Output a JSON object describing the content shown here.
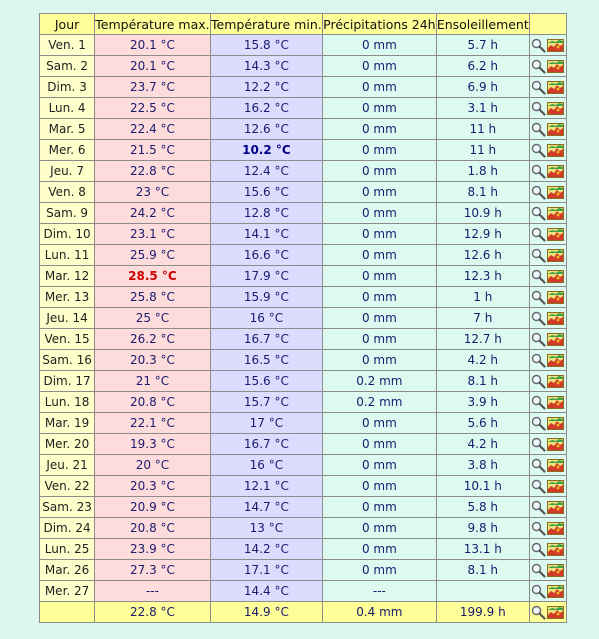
{
  "headers": {
    "jour": "Jour",
    "tmax": "Température max.",
    "tmin": "Température min.",
    "prec": "Précipitations 24h",
    "sun": "Ensoleillement"
  },
  "rows": [
    {
      "jour": "Ven. 1",
      "tmax": "20.1 °C",
      "tmin": "15.8 °C",
      "prec": "0 mm",
      "sun": "5.7 h"
    },
    {
      "jour": "Sam. 2",
      "tmax": "20.1 °C",
      "tmin": "14.3 °C",
      "prec": "0 mm",
      "sun": "6.2 h"
    },
    {
      "jour": "Dim. 3",
      "tmax": "23.7 °C",
      "tmin": "12.2 °C",
      "prec": "0 mm",
      "sun": "6.9 h"
    },
    {
      "jour": "Lun. 4",
      "tmax": "22.5 °C",
      "tmin": "16.2 °C",
      "prec": "0 mm",
      "sun": "3.1 h"
    },
    {
      "jour": "Mar. 5",
      "tmax": "22.4 °C",
      "tmin": "12.6 °C",
      "prec": "0 mm",
      "sun": "11 h"
    },
    {
      "jour": "Mer. 6",
      "tmax": "21.5 °C",
      "tmin": "10.2 °C",
      "prec": "0 mm",
      "sun": "11 h"
    },
    {
      "jour": "Jeu. 7",
      "tmax": "22.8 °C",
      "tmin": "12.4 °C",
      "prec": "0 mm",
      "sun": "1.8 h"
    },
    {
      "jour": "Ven. 8",
      "tmax": "23 °C",
      "tmin": "15.6 °C",
      "prec": "0 mm",
      "sun": "8.1 h"
    },
    {
      "jour": "Sam. 9",
      "tmax": "24.2 °C",
      "tmin": "12.8 °C",
      "prec": "0 mm",
      "sun": "10.9 h"
    },
    {
      "jour": "Dim. 10",
      "tmax": "23.1 °C",
      "tmin": "14.1 °C",
      "prec": "0 mm",
      "sun": "12.9 h"
    },
    {
      "jour": "Lun. 11",
      "tmax": "25.9 °C",
      "tmin": "16.6 °C",
      "prec": "0 mm",
      "sun": "12.6 h"
    },
    {
      "jour": "Mar. 12",
      "tmax": "28.5 °C",
      "tmin": "17.9 °C",
      "prec": "0 mm",
      "sun": "12.3 h"
    },
    {
      "jour": "Mer. 13",
      "tmax": "25.8 °C",
      "tmin": "15.9 °C",
      "prec": "0 mm",
      "sun": "1 h"
    },
    {
      "jour": "Jeu. 14",
      "tmax": "25 °C",
      "tmin": "16 °C",
      "prec": "0 mm",
      "sun": "7 h"
    },
    {
      "jour": "Ven. 15",
      "tmax": "26.2 °C",
      "tmin": "16.7 °C",
      "prec": "0 mm",
      "sun": "12.7 h"
    },
    {
      "jour": "Sam. 16",
      "tmax": "20.3 °C",
      "tmin": "16.5 °C",
      "prec": "0 mm",
      "sun": "4.2 h"
    },
    {
      "jour": "Dim. 17",
      "tmax": "21 °C",
      "tmin": "15.6 °C",
      "prec": "0.2 mm",
      "sun": "8.1 h"
    },
    {
      "jour": "Lun. 18",
      "tmax": "20.8 °C",
      "tmin": "15.7 °C",
      "prec": "0.2 mm",
      "sun": "3.9 h"
    },
    {
      "jour": "Mar. 19",
      "tmax": "22.1 °C",
      "tmin": "17 °C",
      "prec": "0 mm",
      "sun": "5.6 h"
    },
    {
      "jour": "Mer. 20",
      "tmax": "19.3 °C",
      "tmin": "16.7 °C",
      "prec": "0 mm",
      "sun": "4.2 h"
    },
    {
      "jour": "Jeu. 21",
      "tmax": "20 °C",
      "tmin": "16 °C",
      "prec": "0 mm",
      "sun": "3.8 h"
    },
    {
      "jour": "Ven. 22",
      "tmax": "20.3 °C",
      "tmin": "12.1 °C",
      "prec": "0 mm",
      "sun": "10.1 h"
    },
    {
      "jour": "Sam. 23",
      "tmax": "20.9 °C",
      "tmin": "14.7 °C",
      "prec": "0 mm",
      "sun": "5.8 h"
    },
    {
      "jour": "Dim. 24",
      "tmax": "20.8 °C",
      "tmin": "13 °C",
      "prec": "0 mm",
      "sun": "9.8 h"
    },
    {
      "jour": "Lun. 25",
      "tmax": "23.9 °C",
      "tmin": "14.2 °C",
      "prec": "0 mm",
      "sun": "13.1 h"
    },
    {
      "jour": "Mar. 26",
      "tmax": "27.3 °C",
      "tmin": "17.1 °C",
      "prec": "0 mm",
      "sun": "8.1 h"
    },
    {
      "jour": "Mer. 27",
      "tmax": "---",
      "tmin": "14.4 °C",
      "prec": "---",
      "sun": ""
    }
  ],
  "totals": {
    "jour": "",
    "tmax": "22.8 °C",
    "tmin": "14.9 °C",
    "prec": "0.4 mm",
    "sun": "199.9 h"
  },
  "highlights": {
    "max_row": 11,
    "min_row": 5
  },
  "colors": {
    "header": "#ffff99",
    "jour_cell": "#ffffcc",
    "tmax_cell": "#ffdcdc",
    "tmin_cell": "#dcdcff",
    "other_cell": "#dcfaf0",
    "record_max": "#cc0000",
    "record_min": "#000088"
  },
  "icons": [
    "magnifier-icon",
    "map-icon"
  ]
}
